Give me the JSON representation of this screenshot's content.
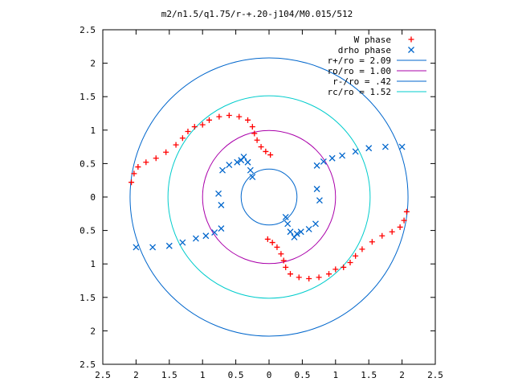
{
  "chart_data": {
    "type": "scatter",
    "title": "m2/n1.5/q1.75/r-+.20-j104/M0.015/512",
    "xlabel": "",
    "ylabel": "",
    "xlim": [
      -2.5,
      2.5
    ],
    "ylim": [
      -2.5,
      2.5
    ],
    "x_ticks": [
      -2.5,
      -2,
      -1.5,
      -1,
      -0.5,
      0,
      0.5,
      1,
      1.5,
      2,
      2.5
    ],
    "y_ticks": [
      -2.5,
      -2,
      -1.5,
      -1,
      -0.5,
      0,
      0.5,
      1,
      1.5,
      2,
      2.5
    ],
    "x_tick_labels": [
      "2.5",
      "2",
      "1.5",
      "1",
      "0.5",
      "0",
      "0.5",
      "1",
      "1.5",
      "2",
      "2.5"
    ],
    "y_tick_labels": [
      "2.5",
      "2",
      "1.5",
      "1",
      "0.5",
      "0",
      "0.5",
      "1",
      "1.5",
      "2",
      "2.5"
    ],
    "grid": false,
    "legend_position": "top-right",
    "series": [
      {
        "name": "W phase",
        "marker": "plus",
        "color": "#ff0000",
        "points": [
          [
            -2.07,
            0.22
          ],
          [
            -2.03,
            0.35
          ],
          [
            -1.97,
            0.45
          ],
          [
            -1.85,
            0.52
          ],
          [
            -1.7,
            0.58
          ],
          [
            -1.55,
            0.67
          ],
          [
            -1.4,
            0.78
          ],
          [
            -1.3,
            0.88
          ],
          [
            -1.22,
            0.98
          ],
          [
            -1.12,
            1.05
          ],
          [
            -1.0,
            1.08
          ],
          [
            -0.9,
            1.15
          ],
          [
            -0.75,
            1.2
          ],
          [
            -0.6,
            1.22
          ],
          [
            -0.45,
            1.2
          ],
          [
            -0.32,
            1.15
          ],
          [
            -0.25,
            1.05
          ],
          [
            -0.22,
            0.95
          ],
          [
            -0.18,
            0.85
          ],
          [
            -0.12,
            0.75
          ],
          [
            -0.05,
            0.68
          ],
          [
            0.02,
            0.63
          ],
          [
            2.07,
            -0.22
          ],
          [
            2.03,
            -0.35
          ],
          [
            1.97,
            -0.45
          ],
          [
            1.85,
            -0.52
          ],
          [
            1.7,
            -0.58
          ],
          [
            1.55,
            -0.67
          ],
          [
            1.4,
            -0.78
          ],
          [
            1.3,
            -0.88
          ],
          [
            1.22,
            -0.98
          ],
          [
            1.12,
            -1.05
          ],
          [
            1.0,
            -1.08
          ],
          [
            0.9,
            -1.15
          ],
          [
            0.75,
            -1.2
          ],
          [
            0.6,
            -1.22
          ],
          [
            0.45,
            -1.2
          ],
          [
            0.32,
            -1.15
          ],
          [
            0.25,
            -1.05
          ],
          [
            0.22,
            -0.95
          ],
          [
            0.18,
            -0.85
          ],
          [
            0.12,
            -0.75
          ],
          [
            0.05,
            -0.68
          ],
          [
            -0.02,
            -0.63
          ]
        ]
      },
      {
        "name": "drho phase",
        "marker": "cross",
        "color": "#0066cc",
        "points": [
          [
            -2.0,
            -0.75
          ],
          [
            -1.75,
            -0.75
          ],
          [
            -1.5,
            -0.73
          ],
          [
            -1.3,
            -0.68
          ],
          [
            -1.1,
            -0.62
          ],
          [
            -0.95,
            -0.58
          ],
          [
            -0.82,
            -0.53
          ],
          [
            -0.72,
            -0.47
          ],
          [
            -0.72,
            -0.12
          ],
          [
            -0.76,
            0.05
          ],
          [
            -0.7,
            0.4
          ],
          [
            -0.6,
            0.48
          ],
          [
            -0.48,
            0.52
          ],
          [
            -0.42,
            0.55
          ],
          [
            -0.38,
            0.6
          ],
          [
            -0.32,
            0.52
          ],
          [
            -0.28,
            0.4
          ],
          [
            -0.25,
            0.3
          ],
          [
            2.0,
            0.75
          ],
          [
            1.75,
            0.75
          ],
          [
            1.5,
            0.73
          ],
          [
            1.3,
            0.68
          ],
          [
            1.1,
            0.62
          ],
          [
            0.95,
            0.58
          ],
          [
            0.82,
            0.53
          ],
          [
            0.72,
            0.47
          ],
          [
            0.72,
            0.12
          ],
          [
            0.76,
            -0.05
          ],
          [
            0.7,
            -0.4
          ],
          [
            0.6,
            -0.48
          ],
          [
            0.48,
            -0.52
          ],
          [
            0.42,
            -0.55
          ],
          [
            0.38,
            -0.6
          ],
          [
            0.32,
            -0.52
          ],
          [
            0.28,
            -0.4
          ],
          [
            0.25,
            -0.3
          ]
        ]
      }
    ],
    "circles": [
      {
        "name": "r+/ro = 2.09",
        "radius": 2.09,
        "color": "#0066cc"
      },
      {
        "name": "ro/ro = 1.00",
        "radius": 1.0,
        "color": "#aa00aa"
      },
      {
        "name": "r-/ro = .42",
        "radius": 0.42,
        "color": "#0066cc"
      },
      {
        "name": "rc/ro = 1.52",
        "radius": 1.52,
        "color": "#00cccc"
      }
    ]
  }
}
